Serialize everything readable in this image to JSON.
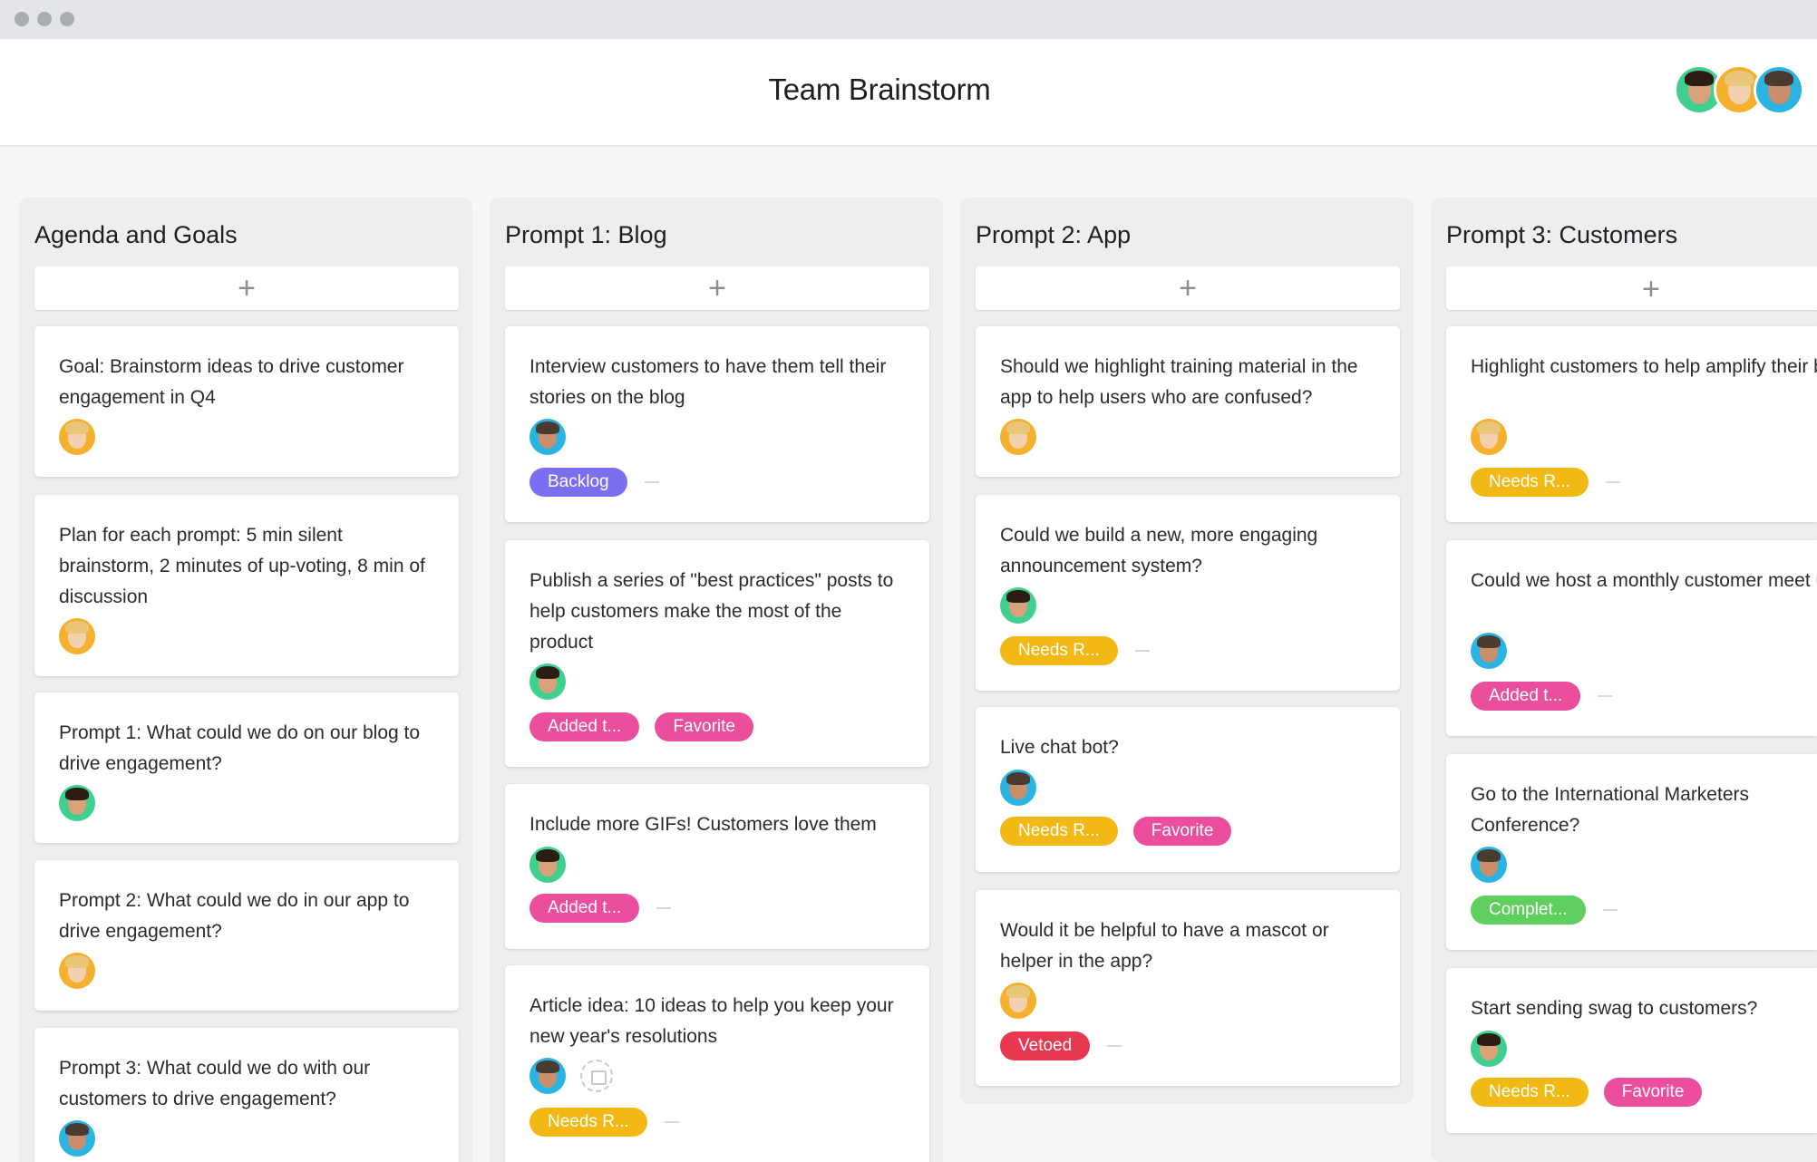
{
  "window": {
    "title": "Team Brainstorm",
    "members": [
      {
        "icon": "avatar-green"
      },
      {
        "icon": "avatar-orange"
      },
      {
        "icon": "avatar-blue"
      }
    ]
  },
  "board": {
    "add_label": "+",
    "columns": [
      {
        "title": "Agenda and Goals",
        "cards": [
          {
            "text": "Goal: Brainstorm ideas to drive customer engagement in Q4",
            "assignee": "avatar-orange"
          },
          {
            "text": "Plan for each prompt: 5 min silent brainstorm, 2 minutes of up-voting, 8 min of discussion",
            "assignee": "avatar-orange"
          },
          {
            "text": "Prompt 1: What could we do on our blog to drive engagement?",
            "assignee": "avatar-green"
          },
          {
            "text": "Prompt 2: What could we do in our app to drive engagement?",
            "assignee": "avatar-orange"
          },
          {
            "text": "Prompt 3: What could we do with our customers to drive engagement?",
            "assignee": "avatar-blue"
          }
        ]
      },
      {
        "title": "Prompt 1: Blog",
        "cards": [
          {
            "text": "Interview customers to have them tell their stories on the blog",
            "assignee": "avatar-blue",
            "tags": [
              "Backlog"
            ]
          },
          {
            "text": "Publish a series of \"best practices\" posts to help customers make the most of the product",
            "assignee": "avatar-green",
            "tags": [
              "Added t...",
              "Favorite"
            ]
          },
          {
            "text": "Include more GIFs! Customers love them",
            "assignee": "avatar-green",
            "tags": [
              "Added t..."
            ]
          },
          {
            "text": "Article idea: 10 ideas to help you keep your new year's resolutions",
            "assignee": "avatar-blue",
            "tags": [
              "Needs R..."
            ]
          }
        ]
      },
      {
        "title": "Prompt 2: App",
        "cards": [
          {
            "text": "Should we highlight training material in the app to help users who are confused?",
            "assignee": "avatar-orange"
          },
          {
            "text": "Could we build a new, more engaging announcement system?",
            "assignee": "avatar-green",
            "tags": [
              "Needs R..."
            ]
          },
          {
            "text": "Live chat bot?",
            "assignee": "avatar-blue",
            "tags": [
              "Needs R...",
              "Favorite"
            ]
          },
          {
            "text": "Would it be helpful to have a mascot or helper in the app?",
            "assignee": "avatar-orange",
            "tags": [
              "Vetoed"
            ]
          }
        ]
      },
      {
        "title": "Prompt 3: Customers",
        "cards": [
          {
            "text": "Highlight customers to help amplify their businesses?",
            "assignee": "avatar-orange",
            "tags": [
              "Needs R..."
            ]
          },
          {
            "text": "Could we host a monthly customer meet up?",
            "assignee": "avatar-blue",
            "tags": [
              "Added t..."
            ]
          },
          {
            "text": "Go to the International Marketers Conference?",
            "assignee": "avatar-blue",
            "tags": [
              "Complet..."
            ]
          },
          {
            "text": "Start sending swag to customers?",
            "assignee": "avatar-green",
            "tags": [
              "Needs R...",
              "Favorite"
            ]
          }
        ]
      }
    ]
  },
  "colors": {
    "backlog": "#7a6ff0",
    "needs_review": "#f2b914",
    "added": "#ea4e9d",
    "favorite": "#ea4e9d",
    "complete": "#5fcf5f",
    "vetoed": "#e8384f"
  }
}
